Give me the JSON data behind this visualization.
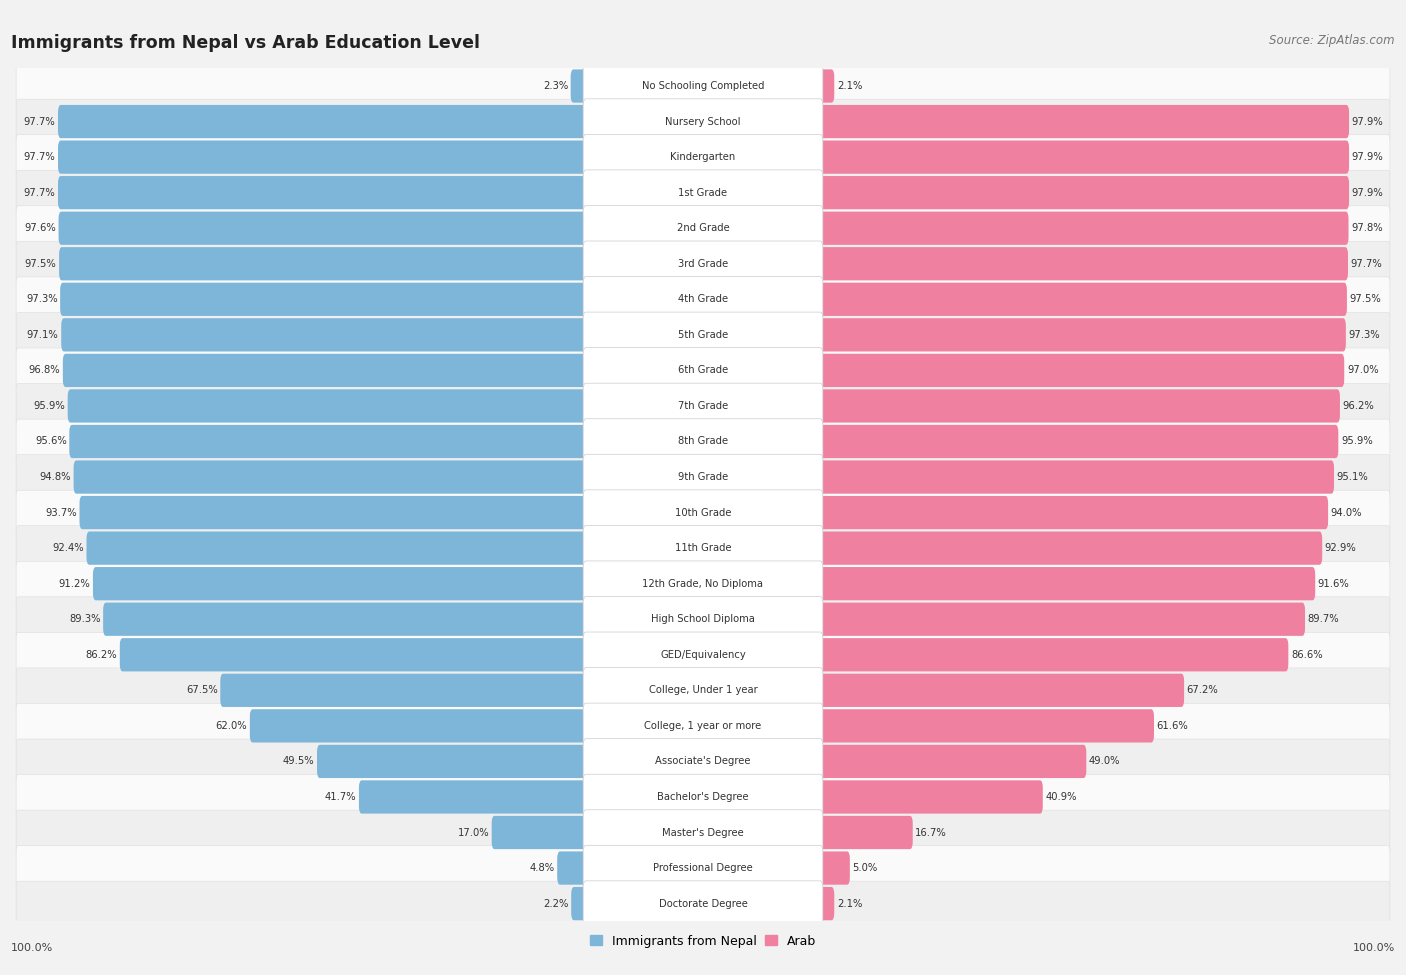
{
  "title": "Immigrants from Nepal vs Arab Education Level",
  "source": "Source: ZipAtlas.com",
  "categories": [
    "No Schooling Completed",
    "Nursery School",
    "Kindergarten",
    "1st Grade",
    "2nd Grade",
    "3rd Grade",
    "4th Grade",
    "5th Grade",
    "6th Grade",
    "7th Grade",
    "8th Grade",
    "9th Grade",
    "10th Grade",
    "11th Grade",
    "12th Grade, No Diploma",
    "High School Diploma",
    "GED/Equivalency",
    "College, Under 1 year",
    "College, 1 year or more",
    "Associate's Degree",
    "Bachelor's Degree",
    "Master's Degree",
    "Professional Degree",
    "Doctorate Degree"
  ],
  "nepal_values": [
    2.3,
    97.7,
    97.7,
    97.7,
    97.6,
    97.5,
    97.3,
    97.1,
    96.8,
    95.9,
    95.6,
    94.8,
    93.7,
    92.4,
    91.2,
    89.3,
    86.2,
    67.5,
    62.0,
    49.5,
    41.7,
    17.0,
    4.8,
    2.2
  ],
  "arab_values": [
    2.1,
    97.9,
    97.9,
    97.9,
    97.8,
    97.7,
    97.5,
    97.3,
    97.0,
    96.2,
    95.9,
    95.1,
    94.0,
    92.9,
    91.6,
    89.7,
    86.6,
    67.2,
    61.6,
    49.0,
    40.9,
    16.7,
    5.0,
    2.1
  ],
  "nepal_color": "#7EB6D9",
  "arab_color": "#F080A0",
  "bg_color": "#F2F2F2",
  "row_colors": [
    "#FAFAFA",
    "#EFEFEF"
  ],
  "legend_nepal": "Immigrants from Nepal",
  "legend_arab": "Arab",
  "left_axis_label": "100.0%",
  "right_axis_label": "100.0%"
}
